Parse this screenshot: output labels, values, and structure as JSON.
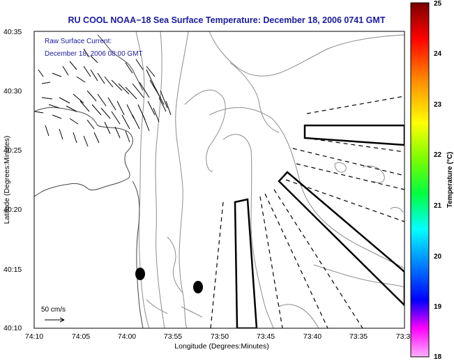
{
  "title": "RU COOL  NOAA−18  Sea Surface Temperature:  December 18, 2006 0741 GMT",
  "annotation": {
    "line1": "Raw Surface Current:",
    "line2": "December 18, 2006 08:00 GMT"
  },
  "axes": {
    "xlabel": "Longitude (Degrees:Minutes)",
    "ylabel": "Latitude (Degrees:Minutes)",
    "xticks": [
      "74:10",
      "74:05",
      "74:00",
      "73:55",
      "73:50",
      "73:45",
      "73:40",
      "73:35",
      "73:3"
    ],
    "yticks": [
      "40:35",
      "40:30",
      "40:25",
      "40:20",
      "40:15",
      "40:10"
    ]
  },
  "scale_bar": {
    "label": "50 cm/s"
  },
  "colorbar": {
    "label": "Temperature (°C)",
    "ticks": [
      "25",
      "24",
      "23",
      "22",
      "21",
      "20",
      "19",
      "18"
    ],
    "colors": [
      "#7a0000",
      "#ff0000",
      "#ff8c00",
      "#ffff00",
      "#7cfc00",
      "#00ff40",
      "#00ffff",
      "#0080ff",
      "#0000ff",
      "#ff00ff",
      "#ffb0ff"
    ]
  },
  "colors": {
    "title": "#1a1aa0",
    "contour": "#888888",
    "frame": "#000000"
  }
}
